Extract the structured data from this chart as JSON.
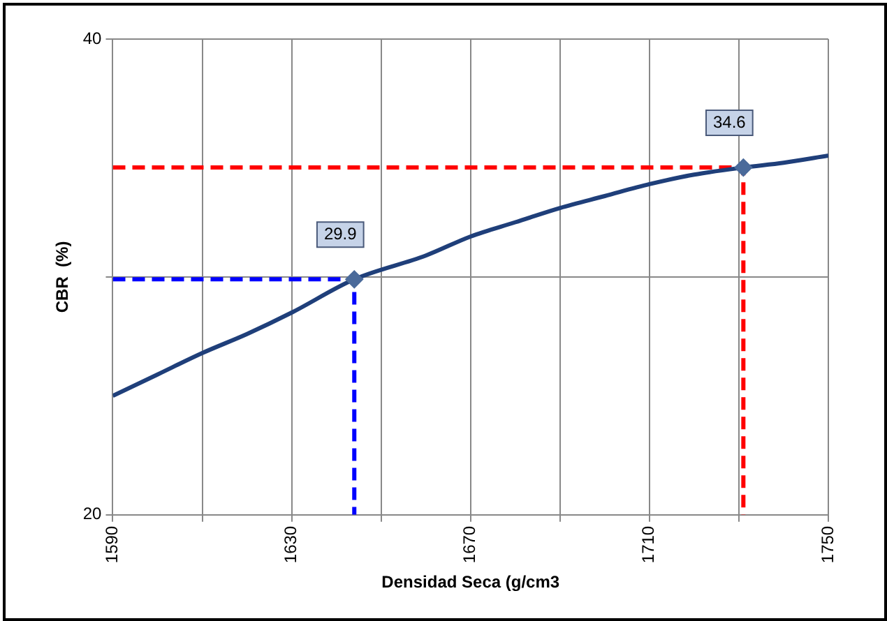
{
  "chart_data": {
    "type": "line",
    "xlabel": "Densidad Seca (g/cm3",
    "ylabel": "CBR  (%)",
    "xlim": [
      1590,
      1750
    ],
    "xticks": [
      1590,
      {
        "value": 1610,
        "label": null
      },
      1630,
      {
        "value": 1650,
        "label": null
      },
      1670,
      {
        "value": 1690,
        "label": null
      },
      1710,
      {
        "value": 1730,
        "label": null
      },
      1750
    ],
    "ylim": [
      20,
      40
    ],
    "yticks": [
      20,
      {
        "value": 30,
        "label": null
      },
      40
    ],
    "grid": true,
    "legend": false,
    "series": [
      {
        "color": "#1f3f7a",
        "x": [
          1590,
          1600,
          1610,
          1620,
          1630,
          1644,
          1660,
          1670,
          1680,
          1690,
          1700,
          1710,
          1720,
          1731,
          1740,
          1750
        ],
        "values": [
          25.0,
          25.9,
          26.8,
          27.6,
          28.5,
          29.9,
          30.9,
          31.7,
          32.3,
          32.9,
          33.4,
          33.9,
          34.3,
          34.6,
          34.8,
          35.1
        ],
        "marker": "none",
        "line_style": "solid"
      },
      {
        "color": "#0000ff",
        "x": [
          1590,
          1644,
          1644
        ],
        "values": [
          29.9,
          29.9,
          20
        ],
        "marker": "none",
        "line_style": "dashed"
      },
      {
        "color": "#ff0000",
        "x": [
          1590,
          1731,
          1731
        ],
        "values": [
          34.6,
          34.6,
          20
        ],
        "marker": "none",
        "line_style": "dashed"
      },
      {
        "type": "scatter",
        "color": "#4a6a9a",
        "x": [
          1644,
          1731
        ],
        "values": [
          29.9,
          34.6
        ],
        "marker": "diamond"
      }
    ],
    "annotations": [
      {
        "text": "29.9",
        "x": 1644,
        "y": 29.9
      },
      {
        "text": "34.6",
        "x": 1731,
        "y": 34.6
      }
    ]
  }
}
